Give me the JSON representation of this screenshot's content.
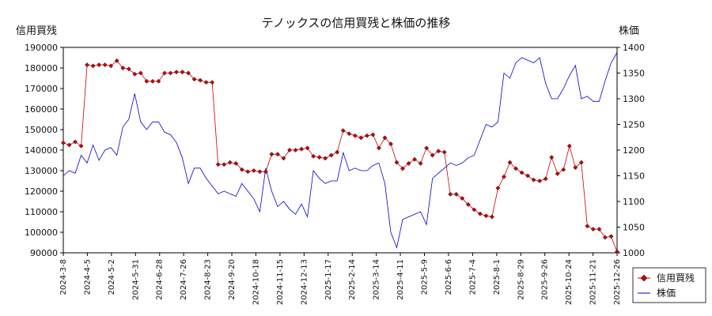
{
  "chart_data": {
    "type": "line",
    "title": "テノックスの信用買残と株価の推移",
    "ylabel_left": "信用買残",
    "ylabel_right": "株価",
    "ylim_left": [
      90000,
      190000
    ],
    "ylim_right": [
      1000,
      1400
    ],
    "yticks_left": [
      "90000",
      "100000",
      "110000",
      "120000",
      "130000",
      "140000",
      "150000",
      "160000",
      "170000",
      "180000",
      "190000"
    ],
    "yticks_right": [
      "1000",
      "1050",
      "1100",
      "1150",
      "1200",
      "1250",
      "1300",
      "1350",
      "1400"
    ],
    "xticks": [
      "2024-3-8",
      "2024-4-5",
      "2024-5-2",
      "2024-5-31",
      "2024-6-28",
      "2024-7-26",
      "2024-8-23",
      "2024-9-20",
      "2024-10-18",
      "2024-11-15",
      "2024-12-13",
      "2025-1-17",
      "2025-2-14",
      "2025-3-14",
      "2025-4-11",
      "2025-5-9",
      "2025-6-6",
      "2025-7-4",
      "2025-8-1",
      "2025-8-29",
      "2025-9-26",
      "2025-10-24",
      "2025-11-21",
      "2025-12-26"
    ],
    "legend_position": "bottom-right",
    "grid": false,
    "series": [
      {
        "name": "信用買残",
        "color": "#cc0000",
        "marker": "diamond",
        "axis": "left",
        "values": [
          143500,
          142500,
          144000,
          142000,
          181500,
          181000,
          181500,
          181500,
          181000,
          183500,
          180000,
          179500,
          177000,
          177500,
          173500,
          173500,
          173500,
          177500,
          177500,
          178000,
          178000,
          177500,
          174500,
          174000,
          173000,
          173000,
          133000,
          133000,
          134000,
          133500,
          130500,
          129500,
          130000,
          129500,
          129500,
          138000,
          138000,
          136000,
          140000,
          140000,
          140500,
          141000,
          137000,
          136500,
          136000,
          137500,
          139000,
          149500,
          148000,
          147000,
          146000,
          147000,
          147500,
          141000,
          146000,
          143000,
          134000,
          131000,
          133500,
          135500,
          133500,
          141000,
          137500,
          139500,
          139000,
          118500,
          118500,
          116500,
          113500,
          111000,
          109000,
          108000,
          107500,
          121500,
          127000,
          134000,
          131000,
          129000,
          127500,
          125500,
          125000,
          126000,
          136500,
          128500,
          130500,
          142000,
          131500,
          134000,
          103000,
          101500,
          101500,
          97500,
          98000,
          90500
        ]
      },
      {
        "name": "株価",
        "color": "#0000cc",
        "axis": "right",
        "values": [
          1150,
          1160,
          1155,
          1190,
          1175,
          1210,
          1180,
          1200,
          1205,
          1190,
          1245,
          1260,
          1310,
          1255,
          1240,
          1255,
          1255,
          1235,
          1230,
          1215,
          1185,
          1135,
          1165,
          1165,
          1145,
          1130,
          1115,
          1120,
          1115,
          1110,
          1135,
          1120,
          1105,
          1080,
          1165,
          1120,
          1090,
          1100,
          1085,
          1075,
          1095,
          1070,
          1160,
          1145,
          1135,
          1140,
          1140,
          1195,
          1160,
          1165,
          1160,
          1160,
          1170,
          1175,
          1135,
          1040,
          1010,
          1065,
          1070,
          1075,
          1080,
          1055,
          1145,
          1155,
          1165,
          1175,
          1170,
          1175,
          1185,
          1190,
          1220,
          1250,
          1245,
          1255,
          1350,
          1340,
          1370,
          1380,
          1375,
          1370,
          1380,
          1330,
          1300,
          1300,
          1320,
          1345,
          1365,
          1300,
          1305,
          1295,
          1295,
          1335,
          1370,
          1390
        ]
      }
    ]
  }
}
